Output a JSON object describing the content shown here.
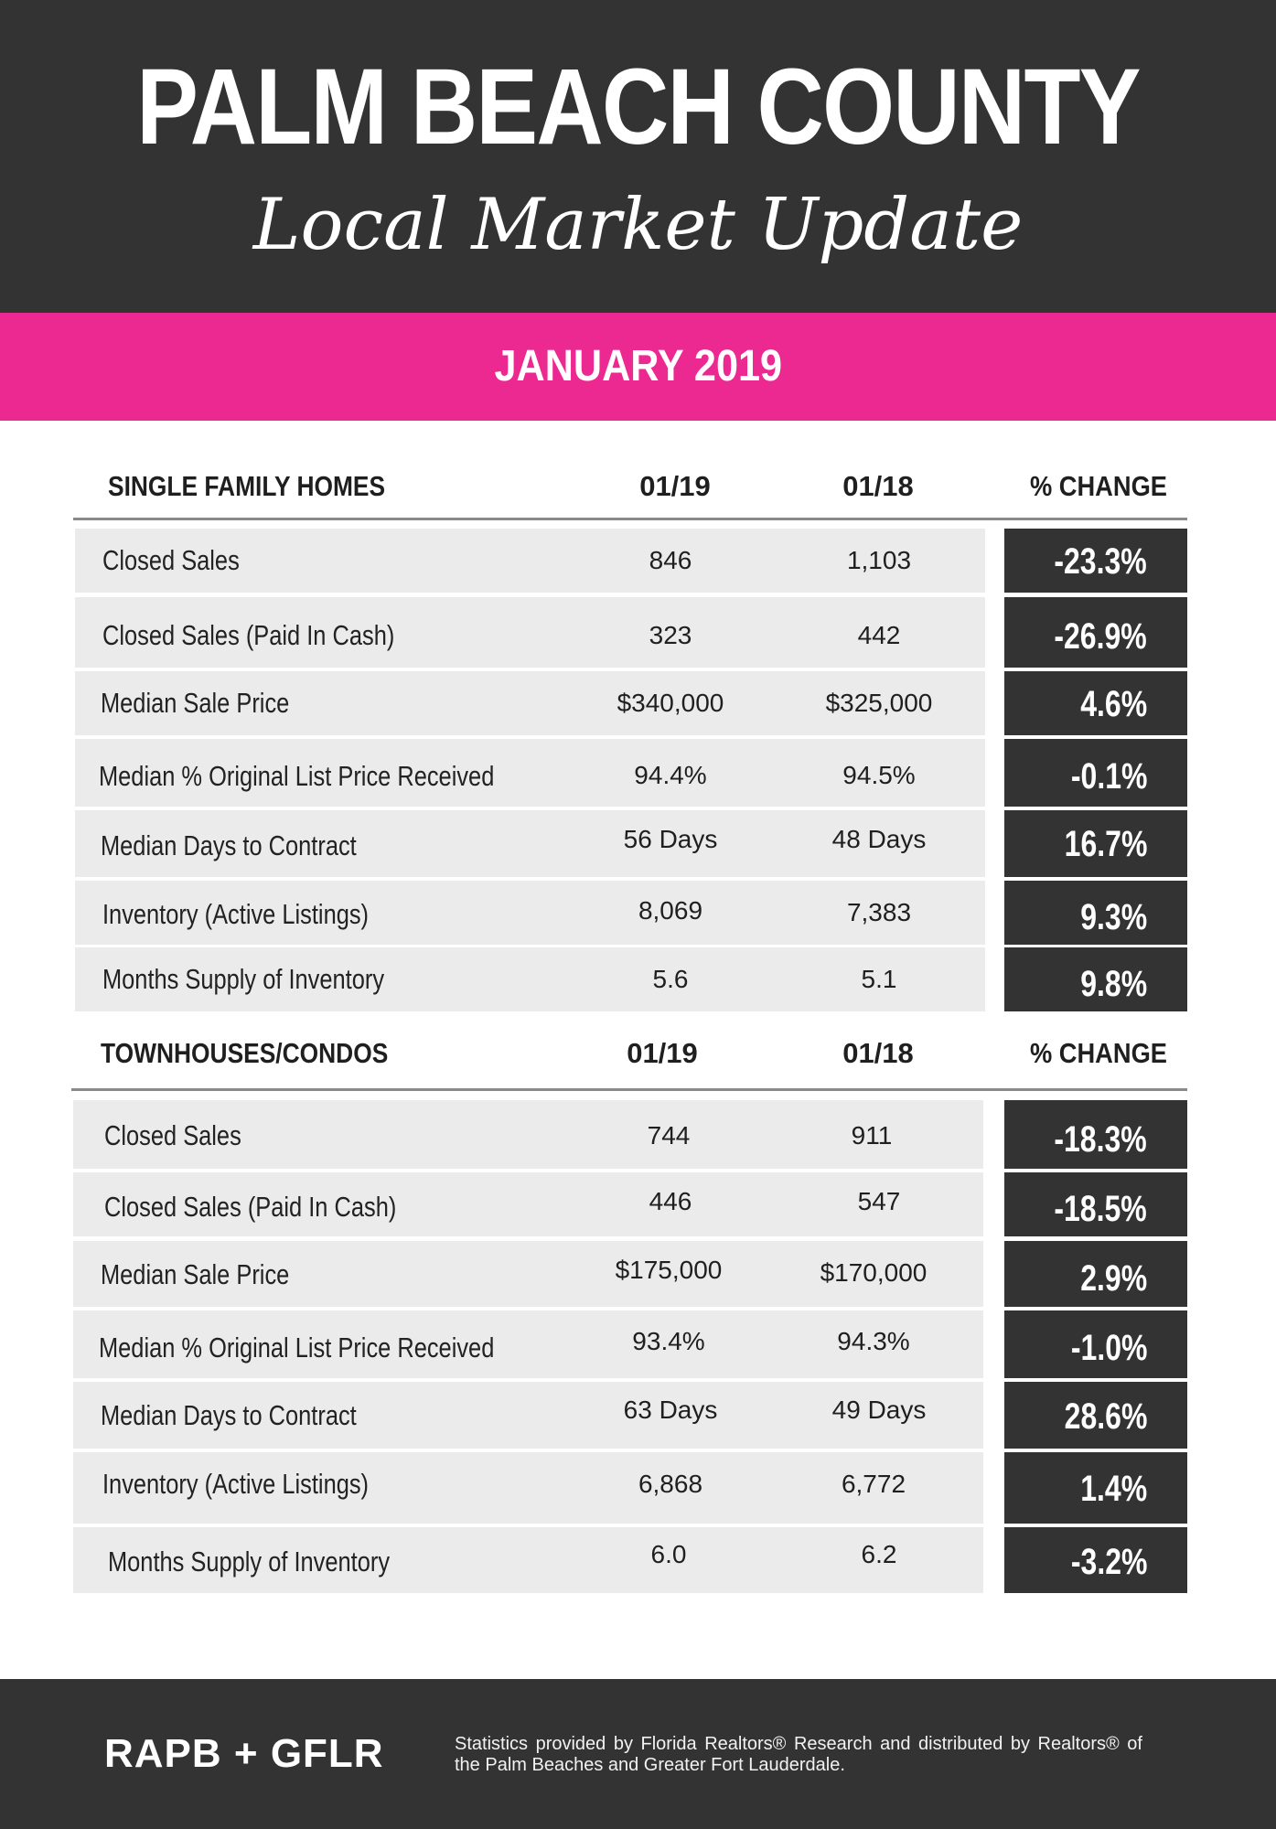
{
  "header": {
    "title": "PALM BEACH COUNTY",
    "subtitle": "Local Market Update"
  },
  "period": "JANUARY 2019",
  "sections": [
    {
      "category": "SINGLE FAMILY HOMES",
      "col_current": "01/19",
      "col_prior": "01/18",
      "col_change": "% CHANGE",
      "rows": [
        {
          "metric": "Closed Sales",
          "current": "846",
          "prior": "1,103",
          "change": "-23.3%"
        },
        {
          "metric": "Closed Sales (Paid In Cash)",
          "current": "323",
          "prior": "442",
          "change": "-26.9%"
        },
        {
          "metric": "Median Sale Price",
          "current": "$340,000",
          "prior": "$325,000",
          "change": "4.6%"
        },
        {
          "metric": "Median % Original List Price Received",
          "current": "94.4%",
          "prior": "94.5%",
          "change": "-0.1%"
        },
        {
          "metric": "Median Days to Contract",
          "current": "56 Days",
          "prior": "48 Days",
          "change": "16.7%"
        },
        {
          "metric": "Inventory (Active Listings)",
          "current": "8,069",
          "prior": "7,383",
          "change": "9.3%"
        },
        {
          "metric": "Months Supply of Inventory",
          "current": "5.6",
          "prior": "5.1",
          "change": "9.8%"
        }
      ]
    },
    {
      "category": "TOWNHOUSES/CONDOS",
      "col_current": "01/19",
      "col_prior": "01/18",
      "col_change": "% CHANGE",
      "rows": [
        {
          "metric": "Closed Sales",
          "current": "744",
          "prior": "911",
          "change": "-18.3%"
        },
        {
          "metric": "Closed Sales (Paid In Cash)",
          "current": "446",
          "prior": "547",
          "change": "-18.5%"
        },
        {
          "metric": "Median Sale Price",
          "current": "$175,000",
          "prior": "$170,000",
          "change": "2.9%"
        },
        {
          "metric": "Median % Original List Price Received",
          "current": "93.4%",
          "prior": "94.3%",
          "change": "-1.0%"
        },
        {
          "metric": "Median Days to Contract",
          "current": "63 Days",
          "prior": "49 Days",
          "change": "28.6%"
        },
        {
          "metric": "Inventory (Active Listings)",
          "current": "6,868",
          "prior": "6,772",
          "change": "1.4%"
        },
        {
          "metric": "Months Supply of Inventory",
          "current": "6.0",
          "prior": "6.2",
          "change": "-3.2%"
        }
      ]
    }
  ],
  "footer": {
    "brand": "RAPB + GFLR",
    "credit": "Statistics provided by Florida Realtors® Research and distributed by Realtors® of the Palm Beaches and Greater Fort Lauderdale."
  },
  "colors": {
    "dark": "#333333",
    "accent": "#ec2990",
    "row_bg": "#ebebeb"
  }
}
